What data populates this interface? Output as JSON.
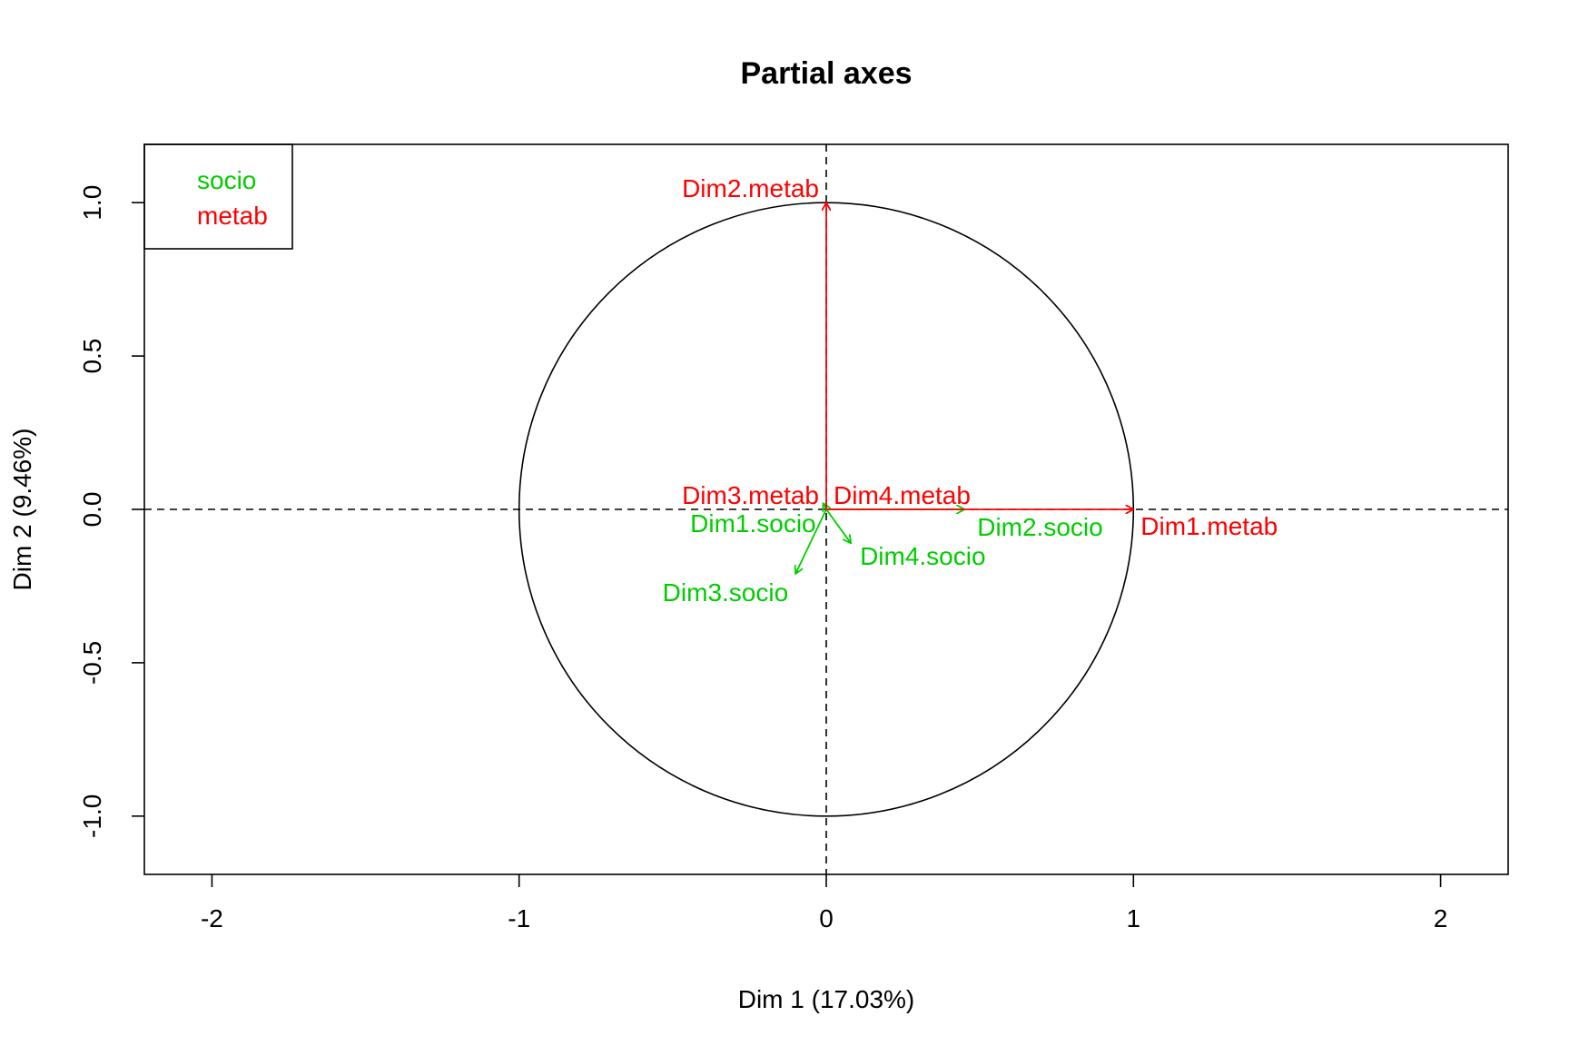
{
  "chart_data": {
    "type": "scatter",
    "title": "Partial axes",
    "xlabel": "Dim 1 (17.03%)",
    "ylabel": "Dim 2 (9.46%)",
    "xlim": [
      -2.22,
      2.22
    ],
    "ylim": [
      -1.19,
      1.19
    ],
    "xticks": [
      -2,
      -1,
      0,
      1,
      2
    ],
    "xtick_labels": [
      "-2",
      "-1",
      "0",
      "1",
      "2"
    ],
    "yticks": [
      -1.0,
      -0.5,
      0.0,
      0.5,
      1.0
    ],
    "ytick_labels": [
      "-1.0",
      "-0.5",
      "0.0",
      "0.5",
      "1.0"
    ],
    "grid": false,
    "reference_lines": "dashed lines at x = 0 and y = 0",
    "unit_circle": true,
    "legend_position": "top-left",
    "colors": {
      "socio": "#00cd00",
      "metab": "#ff0000"
    },
    "series": [
      {
        "name": "socio",
        "color": "#00cd00",
        "vectors": [
          {
            "label": "Dim1.socio",
            "x": -0.01,
            "y": 0.02
          },
          {
            "label": "Dim2.socio",
            "x": 0.45,
            "y": 0.0
          },
          {
            "label": "Dim3.socio",
            "x": -0.1,
            "y": -0.21
          },
          {
            "label": "Dim4.socio",
            "x": 0.08,
            "y": -0.11
          }
        ]
      },
      {
        "name": "metab",
        "color": "#ff0000",
        "vectors": [
          {
            "label": "Dim1.metab",
            "x": 1.0,
            "y": 0.0
          },
          {
            "label": "Dim2.metab",
            "x": 0.0,
            "y": 1.0
          },
          {
            "label": "Dim3.metab",
            "x": 0.0,
            "y": 0.0
          },
          {
            "label": "Dim4.metab",
            "x": 0.0,
            "y": 0.0
          }
        ]
      }
    ]
  }
}
